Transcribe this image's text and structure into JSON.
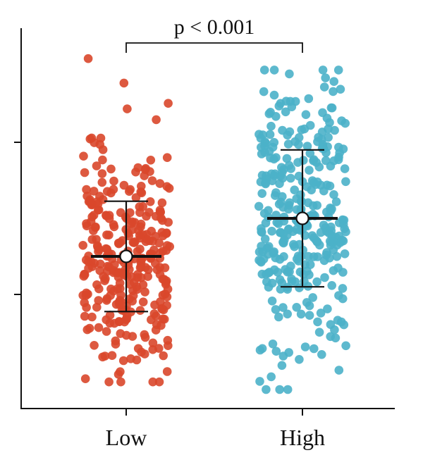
{
  "chart_data": {
    "type": "scatter",
    "title": "",
    "xlabel": "",
    "ylabel": "",
    "categories": [
      "Low",
      "High"
    ],
    "ylim": [
      0,
      10
    ],
    "yticks": [
      3,
      7
    ],
    "ytick_labels_shown": false,
    "grid": false,
    "legend": "none",
    "annotation": "p < 0.001",
    "series": [
      {
        "category": "Low",
        "color": "#d9472b",
        "n_points": 320,
        "mean": 4.0,
        "sd_error_bar": 1.45,
        "y_min": 0.7,
        "y_max": 9.2
      },
      {
        "category": "High",
        "color": "#4bb1c9",
        "n_points": 330,
        "mean": 5.0,
        "sd_error_bar": 1.8,
        "y_min": 0.5,
        "y_max": 8.9
      }
    ]
  }
}
